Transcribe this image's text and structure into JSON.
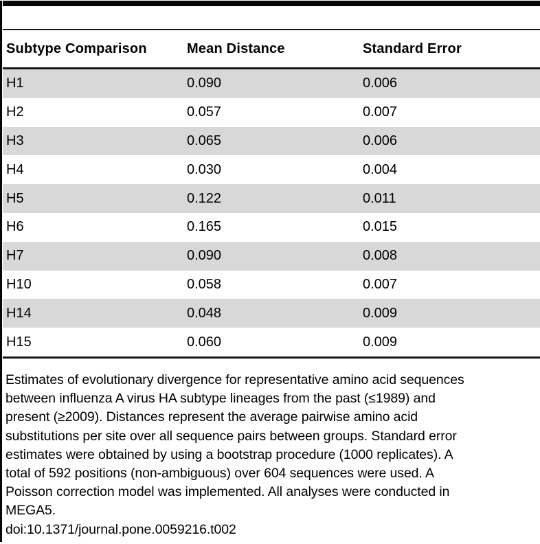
{
  "table": {
    "columns": [
      "Subtype Comparison",
      "Mean Distance",
      "Standard Error"
    ],
    "rows": [
      {
        "subtype": "H1",
        "mean_distance": "0.090",
        "standard_error": "0.006"
      },
      {
        "subtype": "H2",
        "mean_distance": "0.057",
        "standard_error": "0.007"
      },
      {
        "subtype": "H3",
        "mean_distance": "0.065",
        "standard_error": "0.006"
      },
      {
        "subtype": "H4",
        "mean_distance": "0.030",
        "standard_error": "0.004"
      },
      {
        "subtype": "H5",
        "mean_distance": "0.122",
        "standard_error": "0.011"
      },
      {
        "subtype": "H6",
        "mean_distance": "0.165",
        "standard_error": "0.015"
      },
      {
        "subtype": "H7",
        "mean_distance": "0.090",
        "standard_error": "0.008"
      },
      {
        "subtype": "H10",
        "mean_distance": "0.058",
        "standard_error": "0.007"
      },
      {
        "subtype": "H14",
        "mean_distance": "0.048",
        "standard_error": "0.009"
      },
      {
        "subtype": "H15",
        "mean_distance": "0.060",
        "standard_error": "0.009"
      }
    ]
  },
  "footnote": {
    "lines": [
      "Estimates of evolutionary divergence for representative amino acid sequences",
      "between influenza A virus HA subtype lineages from the past (≤1989) and",
      "present (≥2009). Distances represent the average pairwise amino acid",
      "substitutions per site over all sequence pairs between groups. Standard error",
      "estimates were obtained by using a bootstrap procedure (1000 replicates). A",
      "total of 592 positions (non-ambiguous) over 604 sequences were used. A",
      "Poisson correction model was implemented. All analyses were conducted in",
      "MEGA5."
    ],
    "doi": "doi:10.1371/journal.pone.0059216.t002"
  },
  "colors": {
    "row_shade": "#d8d8d8",
    "rule": "#161616",
    "text": "#000000"
  }
}
